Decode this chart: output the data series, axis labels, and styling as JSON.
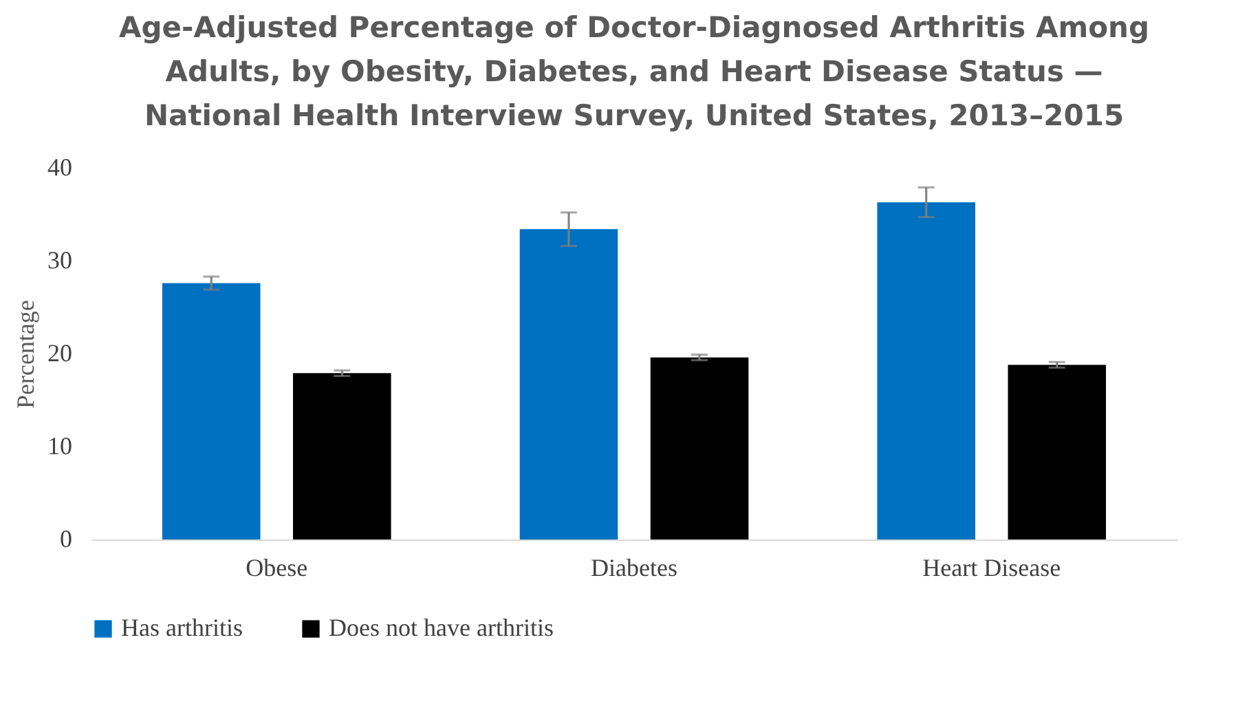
{
  "chart_data": {
    "type": "bar",
    "title": "Age-Adjusted Percentage of Doctor-Diagnosed Arthritis Among Adults, by Obesity, Diabetes, and Heart Disease Status — National Health Interview Survey, United States, 2013–2015",
    "ylabel": "Percentage",
    "categories": [
      "Obese",
      "Diabetes",
      "Heart Disease"
    ],
    "series": [
      {
        "name": "Has arthritis",
        "color": "#0070c0",
        "values": [
          27.6,
          33.4,
          36.3
        ],
        "errors": [
          0.7,
          1.8,
          1.6
        ]
      },
      {
        "name": "Does not have arthritis",
        "color": "#000000",
        "values": [
          17.9,
          19.6,
          18.8
        ],
        "errors": [
          0.3,
          0.3,
          0.3
        ]
      }
    ],
    "ylim": [
      0,
      40
    ],
    "yticks": [
      0,
      10,
      20,
      30,
      40
    ],
    "grid": false,
    "legend": "bottom"
  }
}
